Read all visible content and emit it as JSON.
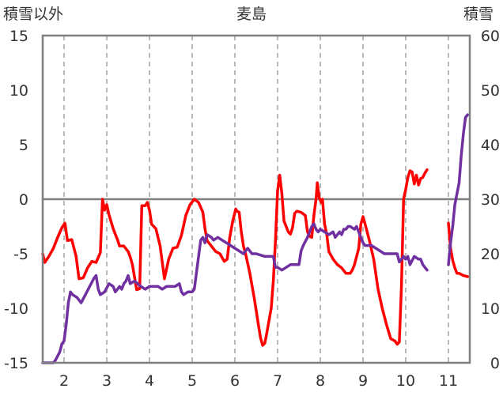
{
  "chart_data": {
    "type": "line",
    "title": "麦島",
    "ylabel_left": "積雪以外",
    "ylabel_right": "積雪",
    "xlim": [
      1.5,
      11.5
    ],
    "ylim_left": [
      -15,
      15
    ],
    "ylim_right": [
      0,
      60
    ],
    "x_ticks": [
      2,
      3,
      4,
      5,
      6,
      7,
      8,
      9,
      10,
      11
    ],
    "y_ticks_left": [
      -15,
      -10,
      -5,
      0,
      5,
      10,
      15
    ],
    "y_ticks_right": [
      0,
      10,
      20,
      30,
      40,
      50,
      60
    ],
    "grid": true,
    "colors": {
      "temperature": "#ff0000",
      "snow": "#7030a0",
      "axis": "#7f7f7f",
      "zero_line": "#7f7f7f"
    },
    "series": [
      {
        "axis": "left",
        "segments": [
          [
            [
              1.5,
              -5.0
            ],
            [
              1.55,
              -5.8
            ],
            [
              1.65,
              -5.2
            ],
            [
              1.75,
              -4.5
            ],
            [
              1.85,
              -3.5
            ],
            [
              1.95,
              -2.6
            ],
            [
              2.02,
              -2.2
            ],
            [
              2.08,
              -3.8
            ],
            [
              2.18,
              -3.7
            ],
            [
              2.28,
              -5.2
            ],
            [
              2.35,
              -7.3
            ],
            [
              2.45,
              -7.2
            ],
            [
              2.55,
              -6.3
            ],
            [
              2.65,
              -5.7
            ],
            [
              2.75,
              -5.8
            ],
            [
              2.85,
              -4.9
            ],
            [
              2.9,
              0.0
            ],
            [
              2.95,
              -1.0
            ],
            [
              3.0,
              -0.5
            ],
            [
              3.05,
              -1.4
            ],
            [
              3.15,
              -2.7
            ],
            [
              3.25,
              -3.7
            ],
            [
              3.3,
              -4.3
            ],
            [
              3.4,
              -4.3
            ],
            [
              3.5,
              -4.8
            ],
            [
              3.55,
              -5.3
            ],
            [
              3.6,
              -6.0
            ],
            [
              3.7,
              -8.3
            ],
            [
              3.77,
              -8.2
            ],
            [
              3.82,
              -0.6
            ],
            [
              3.9,
              -0.6
            ],
            [
              3.95,
              -0.3
            ],
            [
              4.0,
              -1.0
            ],
            [
              4.05,
              -2.3
            ],
            [
              4.15,
              -2.7
            ],
            [
              4.25,
              -4.3
            ],
            [
              4.3,
              -5.8
            ],
            [
              4.35,
              -7.3
            ],
            [
              4.45,
              -5.5
            ],
            [
              4.55,
              -4.5
            ],
            [
              4.65,
              -4.4
            ],
            [
              4.75,
              -3.3
            ],
            [
              4.85,
              -1.5
            ],
            [
              4.95,
              -0.5
            ],
            [
              5.05,
              0.0
            ],
            [
              5.15,
              -0.3
            ],
            [
              5.25,
              -1.2
            ],
            [
              5.3,
              -2.7
            ],
            [
              5.35,
              -3.8
            ],
            [
              5.45,
              -4.3
            ],
            [
              5.55,
              -4.8
            ],
            [
              5.65,
              -5.0
            ],
            [
              5.75,
              -5.7
            ],
            [
              5.82,
              -5.5
            ],
            [
              5.88,
              -3.5
            ],
            [
              5.95,
              -2.0
            ],
            [
              6.02,
              -0.9
            ],
            [
              6.05,
              -1.1
            ],
            [
              6.1,
              -1.2
            ],
            [
              6.15,
              -3.0
            ],
            [
              6.2,
              -4.3
            ],
            [
              6.25,
              -5.0
            ],
            [
              6.35,
              -6.8
            ],
            [
              6.45,
              -9.0
            ],
            [
              6.55,
              -11.5
            ],
            [
              6.6,
              -12.7
            ],
            [
              6.65,
              -13.4
            ],
            [
              6.7,
              -13.2
            ],
            [
              6.75,
              -12.2
            ],
            [
              6.85,
              -10.0
            ],
            [
              6.9,
              -7.5
            ],
            [
              6.95,
              -3.8
            ],
            [
              7.0,
              0.8
            ],
            [
              7.05,
              2.2
            ],
            [
              7.1,
              0.5
            ],
            [
              7.15,
              -2.0
            ],
            [
              7.2,
              -2.5
            ],
            [
              7.25,
              -3.0
            ],
            [
              7.3,
              -3.2
            ],
            [
              7.35,
              -2.6
            ],
            [
              7.4,
              -1.3
            ],
            [
              7.45,
              -1.1
            ],
            [
              7.55,
              -1.2
            ],
            [
              7.65,
              -1.5
            ],
            [
              7.7,
              -3.0
            ],
            [
              7.75,
              -3.4
            ],
            [
              7.8,
              -3.5
            ],
            [
              7.85,
              -1.5
            ],
            [
              7.9,
              0.0
            ],
            [
              7.93,
              1.5
            ],
            [
              7.97,
              0.2
            ],
            [
              8.02,
              -0.3
            ],
            [
              8.05,
              0.0
            ],
            [
              8.1,
              -2.3
            ],
            [
              8.15,
              -3.2
            ],
            [
              8.2,
              -4.8
            ],
            [
              8.3,
              -5.5
            ],
            [
              8.4,
              -6.0
            ],
            [
              8.5,
              -6.3
            ],
            [
              8.6,
              -6.8
            ],
            [
              8.7,
              -6.8
            ],
            [
              8.75,
              -6.5
            ],
            [
              8.8,
              -6.0
            ],
            [
              8.9,
              -4.5
            ],
            [
              8.95,
              -2.3
            ],
            [
              9.0,
              -1.6
            ],
            [
              9.05,
              -2.3
            ],
            [
              9.15,
              -3.8
            ],
            [
              9.25,
              -5.5
            ],
            [
              9.35,
              -8.2
            ],
            [
              9.45,
              -10.0
            ],
            [
              9.55,
              -11.5
            ],
            [
              9.65,
              -12.8
            ],
            [
              9.75,
              -13.0
            ],
            [
              9.8,
              -13.3
            ],
            [
              9.85,
              -13.1
            ],
            [
              9.9,
              -8.0
            ],
            [
              9.95,
              0.0
            ],
            [
              10.0,
              0.9
            ],
            [
              10.05,
              2.0
            ],
            [
              10.1,
              2.6
            ],
            [
              10.15,
              2.5
            ],
            [
              10.2,
              1.4
            ],
            [
              10.25,
              2.2
            ],
            [
              10.3,
              1.3
            ],
            [
              10.35,
              1.9
            ],
            [
              10.4,
              2.0
            ],
            [
              10.45,
              2.4
            ],
            [
              10.5,
              2.7
            ]
          ],
          [
            [
              11.0,
              -2.2
            ],
            [
              11.05,
              -4.5
            ],
            [
              11.1,
              -5.6
            ],
            [
              11.15,
              -6.3
            ],
            [
              11.2,
              -6.8
            ],
            [
              11.25,
              -6.8
            ],
            [
              11.3,
              -6.9
            ],
            [
              11.35,
              -7.0
            ],
            [
              11.45,
              -7.1
            ]
          ]
        ]
      },
      {
        "axis": "right",
        "segments": [
          [
            [
              1.5,
              0.0
            ],
            [
              1.65,
              0.0
            ],
            [
              1.75,
              0.0
            ],
            [
              1.8,
              0.5
            ],
            [
              1.9,
              2.0
            ],
            [
              1.95,
              3.5
            ],
            [
              2.0,
              4.0
            ],
            [
              2.05,
              7.0
            ],
            [
              2.1,
              11.0
            ],
            [
              2.15,
              13.0
            ],
            [
              2.2,
              12.5
            ],
            [
              2.3,
              12.0
            ],
            [
              2.4,
              11.0
            ],
            [
              2.5,
              12.5
            ],
            [
              2.6,
              14.0
            ],
            [
              2.7,
              15.5
            ],
            [
              2.75,
              16.0
            ],
            [
              2.8,
              13.5
            ],
            [
              2.85,
              12.5
            ],
            [
              2.95,
              13.0
            ],
            [
              3.05,
              14.5
            ],
            [
              3.15,
              14.0
            ],
            [
              3.2,
              13.0
            ],
            [
              3.3,
              14.0
            ],
            [
              3.35,
              13.5
            ],
            [
              3.4,
              14.5
            ],
            [
              3.45,
              15.0
            ],
            [
              3.5,
              16.0
            ],
            [
              3.55,
              14.5
            ],
            [
              3.65,
              15.0
            ],
            [
              3.8,
              14.0
            ],
            [
              3.9,
              13.5
            ],
            [
              4.0,
              14.0
            ],
            [
              4.2,
              14.0
            ],
            [
              4.3,
              13.5
            ],
            [
              4.4,
              14.0
            ],
            [
              4.6,
              14.0
            ],
            [
              4.7,
              14.5
            ],
            [
              4.75,
              13.0
            ],
            [
              4.8,
              12.5
            ],
            [
              4.9,
              13.0
            ],
            [
              5.0,
              13.0
            ],
            [
              5.05,
              13.5
            ],
            [
              5.1,
              16.5
            ],
            [
              5.15,
              19.5
            ],
            [
              5.2,
              22.5
            ],
            [
              5.25,
              23.0
            ],
            [
              5.3,
              22.0
            ],
            [
              5.35,
              23.5
            ],
            [
              5.45,
              23.0
            ],
            [
              5.5,
              22.5
            ],
            [
              5.6,
              23.0
            ],
            [
              5.7,
              22.5
            ],
            [
              5.8,
              22.0
            ],
            [
              5.9,
              21.5
            ],
            [
              6.0,
              21.0
            ],
            [
              6.1,
              20.5
            ],
            [
              6.2,
              20.0
            ],
            [
              6.3,
              21.0
            ],
            [
              6.4,
              20.0
            ],
            [
              6.5,
              20.0
            ],
            [
              6.7,
              19.5
            ],
            [
              6.8,
              19.5
            ],
            [
              6.9,
              19.5
            ],
            [
              6.95,
              17.5
            ],
            [
              7.0,
              17.5
            ],
            [
              7.1,
              17.0
            ],
            [
              7.2,
              17.5
            ],
            [
              7.3,
              18.0
            ],
            [
              7.4,
              18.0
            ],
            [
              7.5,
              18.0
            ],
            [
              7.55,
              20.5
            ],
            [
              7.6,
              21.5
            ],
            [
              7.7,
              23.0
            ],
            [
              7.75,
              24.0
            ],
            [
              7.8,
              25.0
            ],
            [
              7.85,
              25.5
            ],
            [
              7.9,
              24.5
            ],
            [
              7.95,
              24.0
            ],
            [
              8.0,
              24.5
            ],
            [
              8.1,
              24.0
            ],
            [
              8.2,
              23.5
            ],
            [
              8.3,
              24.0
            ],
            [
              8.35,
              23.0
            ],
            [
              8.45,
              24.0
            ],
            [
              8.5,
              23.5
            ],
            [
              8.55,
              24.5
            ],
            [
              8.6,
              24.5
            ],
            [
              8.65,
              25.0
            ],
            [
              8.7,
              25.0
            ],
            [
              8.8,
              24.5
            ],
            [
              8.85,
              25.0
            ],
            [
              8.9,
              24.0
            ],
            [
              8.95,
              23.0
            ],
            [
              9.0,
              22.0
            ],
            [
              9.05,
              21.5
            ],
            [
              9.2,
              21.5
            ],
            [
              9.5,
              20.0
            ],
            [
              9.8,
              20.0
            ],
            [
              9.85,
              18.5
            ],
            [
              9.9,
              19.0
            ],
            [
              9.95,
              19.5
            ],
            [
              10.0,
              19.0
            ],
            [
              10.05,
              19.5
            ],
            [
              10.1,
              18.0
            ],
            [
              10.2,
              19.5
            ],
            [
              10.3,
              19.0
            ],
            [
              10.35,
              19.0
            ],
            [
              10.4,
              18.0
            ],
            [
              10.45,
              17.5
            ],
            [
              10.5,
              17.0
            ]
          ],
          [
            [
              11.0,
              18.0
            ],
            [
              11.05,
              22.0
            ],
            [
              11.1,
              25.0
            ],
            [
              11.15,
              29.0
            ],
            [
              11.2,
              31.0
            ],
            [
              11.25,
              33.0
            ],
            [
              11.3,
              38.0
            ],
            [
              11.35,
              42.0
            ],
            [
              11.4,
              45.0
            ],
            [
              11.45,
              45.5
            ]
          ]
        ]
      }
    ]
  }
}
